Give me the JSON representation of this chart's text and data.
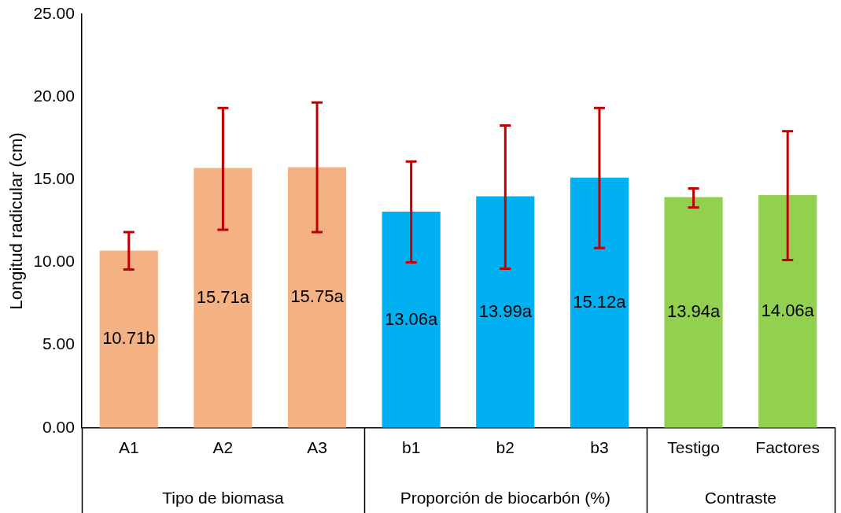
{
  "chart_data": {
    "type": "bar",
    "ylabel": "Longitud radicular (cm)",
    "categories": [
      "A1",
      "A2",
      "A3",
      "b1",
      "b2",
      "b3",
      "Testigo",
      "Factores"
    ],
    "values": [
      10.71,
      15.71,
      15.75,
      13.06,
      13.99,
      15.12,
      13.94,
      14.06
    ],
    "colors": [
      "#f4b183",
      "#f4b183",
      "#f4b183",
      "#00b0f0",
      "#00b0f0",
      "#00b0f0",
      "#92d050",
      "#92d050"
    ],
    "value_labels": [
      "10.71b",
      "15.71a",
      "15.75a",
      "13.06a",
      "13.99a",
      "15.12a",
      "13.94a",
      "14.06a"
    ],
    "errors": [
      [
        9.57,
        11.83
      ],
      [
        11.97,
        19.33
      ],
      [
        11.83,
        19.66
      ],
      [
        10.0,
        16.1
      ],
      [
        9.62,
        18.27
      ],
      [
        10.87,
        19.33
      ],
      [
        13.32,
        14.47
      ],
      [
        10.14,
        17.93
      ]
    ],
    "ylim": [
      0,
      25
    ],
    "yticks": [
      {
        "value": 0,
        "label": "0.00"
      },
      {
        "value": 5,
        "label": "5.00"
      },
      {
        "value": 10,
        "label": "10.00"
      },
      {
        "value": 15,
        "label": "15.00"
      },
      {
        "value": 20,
        "label": "20.00"
      },
      {
        "value": 25,
        "label": "25.00"
      }
    ],
    "grid": false,
    "legend": false,
    "annotations": [
      "Tipo de biomasa",
      "Proporción de biocarbón (%)",
      "Contraste"
    ]
  }
}
